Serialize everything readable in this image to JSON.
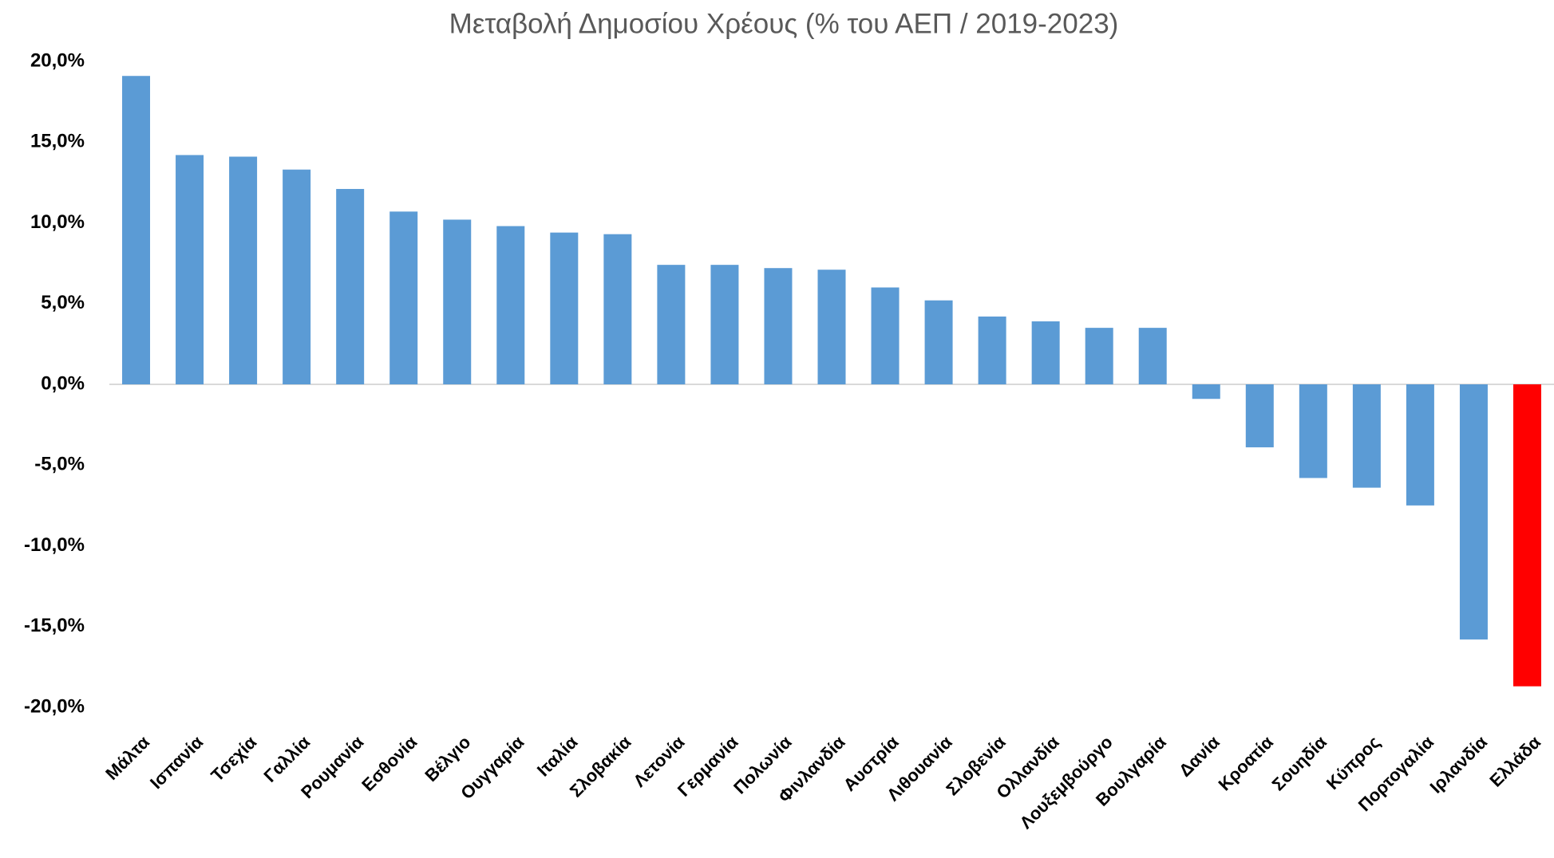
{
  "chart_data": {
    "type": "bar",
    "title": "Μεταβολή Δημοσίου Χρέους (% του ΑΕΠ / 2019-2023)",
    "categories": [
      "Μάλτα",
      "Ισπανία",
      "Τσεχία",
      "Γαλλία",
      "Ρουμανία",
      "Εσθονία",
      "Βέλγιο",
      "Ουγγαρία",
      "Ιταλία",
      "Σλοβακία",
      "Λετονία",
      "Γερμανία",
      "Πολωνία",
      "Φινλανδία",
      "Αυστρία",
      "Λιθουανία",
      "Σλοβενία",
      "Ολλανδία",
      "Λουξεμβούργο",
      "Βουλγαρία",
      "Δανία",
      "Κροατία",
      "Σουηδία",
      "Κύπρος",
      "Πορτογαλία",
      "Ιρλανδία",
      "Ελλάδα"
    ],
    "values": [
      19.1,
      14.2,
      14.1,
      13.3,
      12.1,
      10.7,
      10.2,
      9.8,
      9.4,
      9.3,
      7.4,
      7.4,
      7.2,
      7.1,
      6.0,
      5.2,
      4.2,
      3.9,
      3.5,
      3.5,
      -0.9,
      -3.9,
      -5.8,
      -6.4,
      -7.5,
      -15.8,
      -18.7
    ],
    "colors": [
      "#5b9bd5",
      "#5b9bd5",
      "#5b9bd5",
      "#5b9bd5",
      "#5b9bd5",
      "#5b9bd5",
      "#5b9bd5",
      "#5b9bd5",
      "#5b9bd5",
      "#5b9bd5",
      "#5b9bd5",
      "#5b9bd5",
      "#5b9bd5",
      "#5b9bd5",
      "#5b9bd5",
      "#5b9bd5",
      "#5b9bd5",
      "#5b9bd5",
      "#5b9bd5",
      "#5b9bd5",
      "#5b9bd5",
      "#5b9bd5",
      "#5b9bd5",
      "#5b9bd5",
      "#5b9bd5",
      "#5b9bd5",
      "#ff0000"
    ],
    "ylim": [
      -20,
      20
    ],
    "yticks": [
      {
        "value": 20,
        "label": "20,0%"
      },
      {
        "value": 15,
        "label": "15,0%"
      },
      {
        "value": 10,
        "label": "10,0%"
      },
      {
        "value": 5,
        "label": "5,0%"
      },
      {
        "value": 0,
        "label": "0,0%"
      },
      {
        "value": -5,
        "label": "-5,0%"
      },
      {
        "value": -10,
        "label": "-10,0%"
      },
      {
        "value": -15,
        "label": "-15,0%"
      },
      {
        "value": -20,
        "label": "-20,0%"
      }
    ],
    "grid": false
  }
}
